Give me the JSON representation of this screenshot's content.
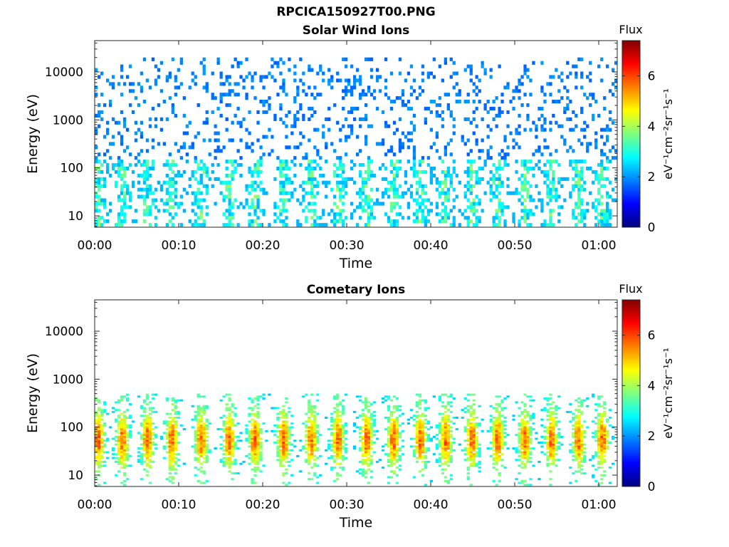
{
  "figure": {
    "title": "RPCICA150927T00.PNG"
  },
  "chart_data": [
    {
      "type": "heatmap",
      "title": "Solar Wind Ions",
      "xlabel": "Time",
      "ylabel": "Energy (eV)",
      "x_ticks": [
        "00:00",
        "00:10",
        "00:20",
        "00:30",
        "00:40",
        "00:50",
        "01:00"
      ],
      "x_tick_minutes": [
        0,
        10,
        20,
        30,
        40,
        50,
        60
      ],
      "xlim_minutes": [
        0,
        62.2
      ],
      "y_scale": "log",
      "y_ticks": [
        "10",
        "100",
        "1000",
        "10000"
      ],
      "y_tick_values": [
        10,
        100,
        1000,
        10000
      ],
      "ylim": [
        5.8,
        45000
      ],
      "colorbar": {
        "label_top": "Flux",
        "label": "eV⁻¹cm⁻²sr⁻¹s⁻¹",
        "ticks": [
          "0",
          "2",
          "4",
          "6"
        ],
        "range": [
          0,
          7.4
        ],
        "colormap": "jet"
      },
      "pattern": {
        "description_values": "sparse low-flux (~1.5-2.5) counts across 100-10000 eV; moderate flux (~2.5-3.5) bursts near 30-200 eV and 6-50 eV",
        "burst_minutes": [
          0.4,
          3.3,
          6.3,
          9.2,
          12.7,
          16.0,
          19.1,
          22.5,
          25.8,
          29.0,
          32.4,
          35.6,
          38.8,
          41.8,
          44.9,
          48.0,
          51.2,
          54.4,
          57.6,
          60.4
        ],
        "flux_low": 1.6,
        "flux_high": 3.4,
        "energy_min": 6,
        "energy_max": 20000,
        "core_energy": 60
      }
    },
    {
      "type": "heatmap",
      "title": "Cometary Ions",
      "xlabel": "Time",
      "ylabel": "Energy (eV)",
      "x_ticks": [
        "00:00",
        "00:10",
        "00:20",
        "00:30",
        "00:40",
        "00:50",
        "01:00"
      ],
      "x_tick_minutes": [
        0,
        10,
        20,
        30,
        40,
        50,
        60
      ],
      "xlim_minutes": [
        0,
        62.2
      ],
      "y_scale": "log",
      "y_ticks": [
        "10",
        "100",
        "1000",
        "10000"
      ],
      "y_tick_values": [
        10,
        100,
        1000,
        10000
      ],
      "ylim": [
        5.8,
        45000
      ],
      "colorbar": {
        "label_top": "Flux",
        "label": "eV⁻¹cm⁻²sr⁻¹s⁻¹",
        "ticks": [
          "0",
          "2",
          "4",
          "6"
        ],
        "range": [
          0,
          7.4
        ],
        "colormap": "jet"
      },
      "pattern": {
        "description_values": "periodic bursts of cometary ions between ~8 and ~400 eV, peak flux ~5.5-6.5 near 40-60 eV, band at ~42 eV",
        "burst_minutes": [
          0.4,
          3.3,
          6.3,
          9.2,
          12.7,
          16.0,
          19.1,
          22.5,
          25.8,
          29.0,
          32.4,
          35.6,
          38.8,
          41.8,
          44.9,
          48.0,
          51.2,
          54.4,
          57.6,
          60.4
        ],
        "flux_low": 2.3,
        "flux_high": 6.3,
        "energy_min": 6,
        "energy_max": 500,
        "core_energy": 55
      }
    }
  ]
}
